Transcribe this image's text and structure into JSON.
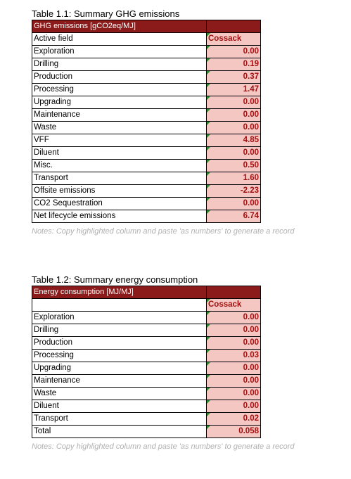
{
  "table1": {
    "caption": "Table 1.1: Summary GHG emissions",
    "header_label": "GHG emissions [gCO2eq/MJ]",
    "field_label": "Active field",
    "field_name": "Cossack",
    "rows": [
      {
        "label": "Exploration",
        "value": "0.00"
      },
      {
        "label": "Drilling",
        "value": "0.19"
      },
      {
        "label": "Production",
        "value": "0.37"
      },
      {
        "label": "Processing",
        "value": "1.47"
      },
      {
        "label": "Upgrading",
        "value": "0.00"
      },
      {
        "label": "Maintenance",
        "value": "0.00"
      },
      {
        "label": "Waste",
        "value": "0.00"
      },
      {
        "label": "VFF",
        "value": "4.85"
      },
      {
        "label": "Diluent",
        "value": "0.00"
      },
      {
        "label": "Misc.",
        "value": "0.50"
      },
      {
        "label": "Transport",
        "value": "1.60"
      },
      {
        "label": "Offsite emissions",
        "value": "-2.23"
      },
      {
        "label": "CO2 Sequestration",
        "value": "0.00"
      },
      {
        "label": "Net lifecycle emissions",
        "value": "6.74"
      }
    ],
    "note": "Notes: Copy highlighted column and paste 'as numbers' to generate a record"
  },
  "table2": {
    "caption": "Table 1.2: Summary energy consumption",
    "header_label": "Energy consumption [MJ/MJ]",
    "field_name": "Cossack",
    "rows": [
      {
        "label": "Exploration",
        "value": "0.00"
      },
      {
        "label": "Drilling",
        "value": "0.00"
      },
      {
        "label": "Production",
        "value": "0.00"
      },
      {
        "label": "Processing",
        "value": "0.03"
      },
      {
        "label": "Upgrading",
        "value": "0.00"
      },
      {
        "label": "Maintenance",
        "value": "0.00"
      },
      {
        "label": "Waste",
        "value": "0.00"
      },
      {
        "label": "Diluent",
        "value": "0.00"
      },
      {
        "label": "Transport",
        "value": "0.02"
      },
      {
        "label": "Total",
        "value": "0.058"
      }
    ],
    "note": "Notes: Copy highlighted column and paste 'as numbers' to generate a record"
  },
  "colors": {
    "header_fill": "#8b1a1a",
    "highlight_fill": "#f4c7c3",
    "value_text": "#a01010",
    "note_text": "#b0b0b0",
    "cell_marker": "#2e8b2e"
  }
}
